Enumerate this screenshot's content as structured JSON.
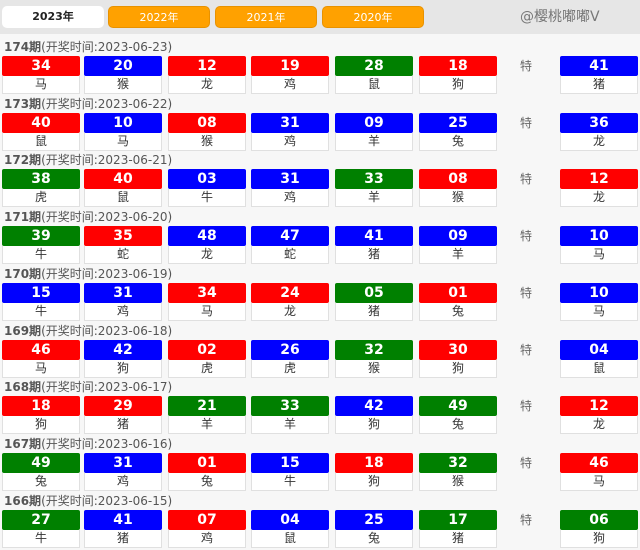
{
  "tabs": [
    {
      "label": "2023年",
      "active": true
    },
    {
      "label": "2022年",
      "active": false
    },
    {
      "label": "2021年",
      "active": false
    },
    {
      "label": "2020年",
      "active": false
    }
  ],
  "special_label": "特",
  "colors": {
    "red": "#ff0000",
    "blue": "#0000ff",
    "green": "#008000",
    "tab_orange": "#ffa100"
  },
  "watermark": "@樱桃嘟嘟V",
  "draws": [
    {
      "issue": "174期",
      "date": "(开奖时间:2023-06-23)",
      "balls": [
        {
          "n": "34",
          "c": "red",
          "z": "马"
        },
        {
          "n": "20",
          "c": "blue",
          "z": "猴"
        },
        {
          "n": "12",
          "c": "red",
          "z": "龙"
        },
        {
          "n": "19",
          "c": "red",
          "z": "鸡"
        },
        {
          "n": "28",
          "c": "green",
          "z": "鼠"
        },
        {
          "n": "18",
          "c": "red",
          "z": "狗"
        }
      ],
      "special": {
        "n": "41",
        "c": "blue",
        "z": "猪"
      }
    },
    {
      "issue": "173期",
      "date": "(开奖时间:2023-06-22)",
      "balls": [
        {
          "n": "40",
          "c": "red",
          "z": "鼠"
        },
        {
          "n": "10",
          "c": "blue",
          "z": "马"
        },
        {
          "n": "08",
          "c": "red",
          "z": "猴"
        },
        {
          "n": "31",
          "c": "blue",
          "z": "鸡"
        },
        {
          "n": "09",
          "c": "blue",
          "z": "羊"
        },
        {
          "n": "25",
          "c": "blue",
          "z": "兔"
        }
      ],
      "special": {
        "n": "36",
        "c": "blue",
        "z": "龙"
      }
    },
    {
      "issue": "172期",
      "date": "(开奖时间:2023-06-21)",
      "balls": [
        {
          "n": "38",
          "c": "green",
          "z": "虎"
        },
        {
          "n": "40",
          "c": "red",
          "z": "鼠"
        },
        {
          "n": "03",
          "c": "blue",
          "z": "牛"
        },
        {
          "n": "31",
          "c": "blue",
          "z": "鸡"
        },
        {
          "n": "33",
          "c": "green",
          "z": "羊"
        },
        {
          "n": "08",
          "c": "red",
          "z": "猴"
        }
      ],
      "special": {
        "n": "12",
        "c": "red",
        "z": "龙"
      }
    },
    {
      "issue": "171期",
      "date": "(开奖时间:2023-06-20)",
      "balls": [
        {
          "n": "39",
          "c": "green",
          "z": "牛"
        },
        {
          "n": "35",
          "c": "red",
          "z": "蛇"
        },
        {
          "n": "48",
          "c": "blue",
          "z": "龙"
        },
        {
          "n": "47",
          "c": "blue",
          "z": "蛇"
        },
        {
          "n": "41",
          "c": "blue",
          "z": "猪"
        },
        {
          "n": "09",
          "c": "blue",
          "z": "羊"
        }
      ],
      "special": {
        "n": "10",
        "c": "blue",
        "z": "马"
      }
    },
    {
      "issue": "170期",
      "date": "(开奖时间:2023-06-19)",
      "balls": [
        {
          "n": "15",
          "c": "blue",
          "z": "牛"
        },
        {
          "n": "31",
          "c": "blue",
          "z": "鸡"
        },
        {
          "n": "34",
          "c": "red",
          "z": "马"
        },
        {
          "n": "24",
          "c": "red",
          "z": "龙"
        },
        {
          "n": "05",
          "c": "green",
          "z": "猪"
        },
        {
          "n": "01",
          "c": "red",
          "z": "兔"
        }
      ],
      "special": {
        "n": "10",
        "c": "blue",
        "z": "马"
      }
    },
    {
      "issue": "169期",
      "date": "(开奖时间:2023-06-18)",
      "balls": [
        {
          "n": "46",
          "c": "red",
          "z": "马"
        },
        {
          "n": "42",
          "c": "blue",
          "z": "狗"
        },
        {
          "n": "02",
          "c": "red",
          "z": "虎"
        },
        {
          "n": "26",
          "c": "blue",
          "z": "虎"
        },
        {
          "n": "32",
          "c": "green",
          "z": "猴"
        },
        {
          "n": "30",
          "c": "red",
          "z": "狗"
        }
      ],
      "special": {
        "n": "04",
        "c": "blue",
        "z": "鼠"
      }
    },
    {
      "issue": "168期",
      "date": "(开奖时间:2023-06-17)",
      "balls": [
        {
          "n": "18",
          "c": "red",
          "z": "狗"
        },
        {
          "n": "29",
          "c": "red",
          "z": "猪"
        },
        {
          "n": "21",
          "c": "green",
          "z": "羊"
        },
        {
          "n": "33",
          "c": "green",
          "z": "羊"
        },
        {
          "n": "42",
          "c": "blue",
          "z": "狗"
        },
        {
          "n": "49",
          "c": "green",
          "z": "兔"
        }
      ],
      "special": {
        "n": "12",
        "c": "red",
        "z": "龙"
      }
    },
    {
      "issue": "167期",
      "date": "(开奖时间:2023-06-16)",
      "balls": [
        {
          "n": "49",
          "c": "green",
          "z": "兔"
        },
        {
          "n": "31",
          "c": "blue",
          "z": "鸡"
        },
        {
          "n": "01",
          "c": "red",
          "z": "兔"
        },
        {
          "n": "15",
          "c": "blue",
          "z": "牛"
        },
        {
          "n": "18",
          "c": "red",
          "z": "狗"
        },
        {
          "n": "32",
          "c": "green",
          "z": "猴"
        }
      ],
      "special": {
        "n": "46",
        "c": "red",
        "z": "马"
      }
    },
    {
      "issue": "166期",
      "date": "(开奖时间:2023-06-15)",
      "balls": [
        {
          "n": "27",
          "c": "green",
          "z": "牛"
        },
        {
          "n": "41",
          "c": "blue",
          "z": "猪"
        },
        {
          "n": "07",
          "c": "red",
          "z": "鸡"
        },
        {
          "n": "04",
          "c": "blue",
          "z": "鼠"
        },
        {
          "n": "25",
          "c": "blue",
          "z": "兔"
        },
        {
          "n": "17",
          "c": "green",
          "z": "猪"
        }
      ],
      "special": {
        "n": "06",
        "c": "green",
        "z": "狗"
      }
    }
  ]
}
